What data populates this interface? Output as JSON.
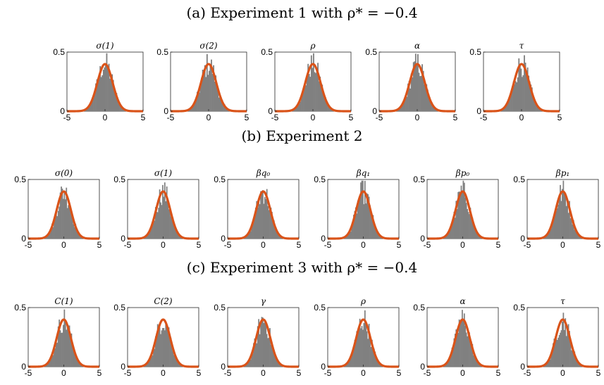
{
  "sections": [
    {
      "title": "(a) Experiment 1 with ρ* = −0.4",
      "panels": [
        "σ(1)",
        "σ(2)",
        "ρ",
        "α",
        "τ"
      ]
    },
    {
      "title": "(b) Experiment 2",
      "panels": [
        "σ(0)",
        "σ(1)",
        "βq₀",
        "βq₁",
        "βp₀",
        "βp₁"
      ]
    },
    {
      "title": "(c) Experiment 3 with ρ* = −0.4",
      "panels": [
        "C(1)",
        "C(2)",
        "γ",
        "ρ",
        "α",
        "τ"
      ]
    }
  ],
  "colors": {
    "histogram": "#808080",
    "curve": "#d95319",
    "axis": "#262626"
  },
  "chart_data": {
    "type": "histogram",
    "description_curve": "standard normal density overlay",
    "xlim": [
      -5,
      5
    ],
    "ylim": [
      0,
      0.5
    ],
    "xticks": [
      "-5",
      "0",
      "5"
    ],
    "yticks": [
      "0",
      "0.5"
    ],
    "grid": false
  }
}
